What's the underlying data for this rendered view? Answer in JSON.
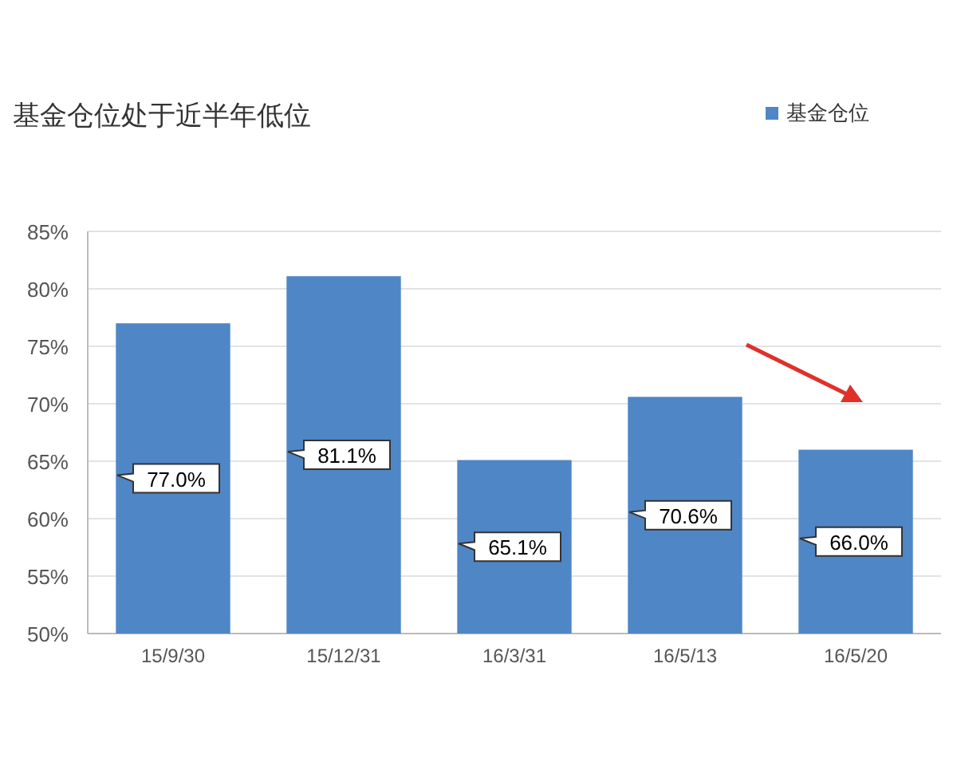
{
  "chart_data": {
    "type": "bar",
    "title": "基金仓位处于近半年低位",
    "categories": [
      "15/9/30",
      "15/12/31",
      "16/3/31",
      "16/5/13",
      "16/5/20"
    ],
    "series": [
      {
        "name": "基金仓位",
        "color": "#4f86c6",
        "values": [
          77.0,
          81.1,
          65.1,
          70.6,
          66.0
        ],
        "value_labels": [
          "77.0%",
          "81.1%",
          "65.1%",
          "70.6%",
          "66.0%"
        ]
      }
    ],
    "ylim": [
      50,
      85
    ],
    "yticks": [
      {
        "value": 50,
        "label": "50%"
      },
      {
        "value": 55,
        "label": "55%"
      },
      {
        "value": 60,
        "label": "60%"
      },
      {
        "value": 65,
        "label": "65%"
      },
      {
        "value": 70,
        "label": "70%"
      },
      {
        "value": 75,
        "label": "75%"
      },
      {
        "value": 80,
        "label": "80%"
      },
      {
        "value": 85,
        "label": "85%"
      }
    ],
    "grid": "y",
    "legend": "top right"
  }
}
